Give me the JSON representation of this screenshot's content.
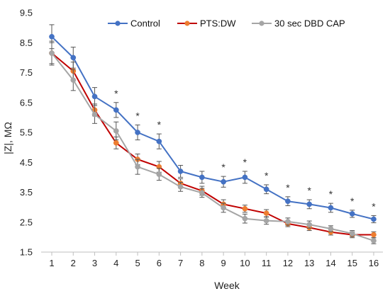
{
  "chart_data": {
    "type": "line",
    "xlabel": "Week",
    "ylabel": "|Z|, MΩ",
    "x": [
      1,
      2,
      3,
      4,
      5,
      6,
      7,
      8,
      9,
      10,
      11,
      12,
      13,
      14,
      15,
      16
    ],
    "x_tick_labels": [
      "1",
      "2",
      "3",
      "4",
      "5",
      "6",
      "7",
      "8",
      "9",
      "10",
      "11",
      "12",
      "13",
      "14",
      "15",
      "16"
    ],
    "ylim": [
      1.5,
      9.5
    ],
    "y_ticks": [
      1.5,
      2.5,
      3.5,
      4.5,
      5.5,
      6.5,
      7.5,
      8.5,
      9.5
    ],
    "y_tick_labels": [
      "1.5",
      "2.5",
      "3.5",
      "4.5",
      "5.5",
      "6.5",
      "7.5",
      "8.5",
      "9.5"
    ],
    "grid": false,
    "legend_position": "top",
    "series": [
      {
        "name": "Control",
        "line_color": "#4472C4",
        "marker_color": "#4472C4",
        "values": [
          8.7,
          8.0,
          6.7,
          6.25,
          5.5,
          5.2,
          4.2,
          4.0,
          3.85,
          4.0,
          3.6,
          3.2,
          3.1,
          2.98,
          2.78,
          2.6
        ],
        "errors": [
          0.4,
          0.35,
          0.3,
          0.25,
          0.25,
          0.25,
          0.2,
          0.2,
          0.18,
          0.2,
          0.15,
          0.15,
          0.15,
          0.15,
          0.12,
          0.12
        ]
      },
      {
        "name": "PTS:DW",
        "line_color": "#C00000",
        "marker_color": "#ED7D31",
        "values": [
          8.15,
          7.55,
          6.25,
          5.15,
          4.6,
          4.35,
          3.8,
          3.55,
          3.1,
          2.95,
          2.8,
          2.45,
          2.32,
          2.17,
          2.08,
          2.08
        ],
        "errors": [
          0.35,
          0.3,
          0.2,
          0.2,
          0.18,
          0.18,
          0.15,
          0.15,
          0.15,
          0.12,
          0.12,
          0.1,
          0.1,
          0.1,
          0.1,
          0.1
        ]
      },
      {
        "name": "30 sec DBD CAP",
        "line_color": "#A5A5A5",
        "marker_color": "#A5A5A5",
        "values": [
          8.15,
          7.25,
          6.1,
          5.55,
          4.35,
          4.1,
          3.68,
          3.48,
          2.98,
          2.62,
          2.55,
          2.52,
          2.42,
          2.28,
          2.12,
          1.88
        ],
        "errors": [
          0.4,
          0.35,
          0.3,
          0.3,
          0.25,
          0.2,
          0.15,
          0.15,
          0.15,
          0.15,
          0.12,
          0.12,
          0.12,
          0.1,
          0.1,
          0.1
        ]
      }
    ],
    "significance_marker": "*",
    "significance_weeks": [
      4,
      5,
      6,
      9,
      10,
      11,
      12,
      13,
      14,
      15,
      16
    ]
  }
}
